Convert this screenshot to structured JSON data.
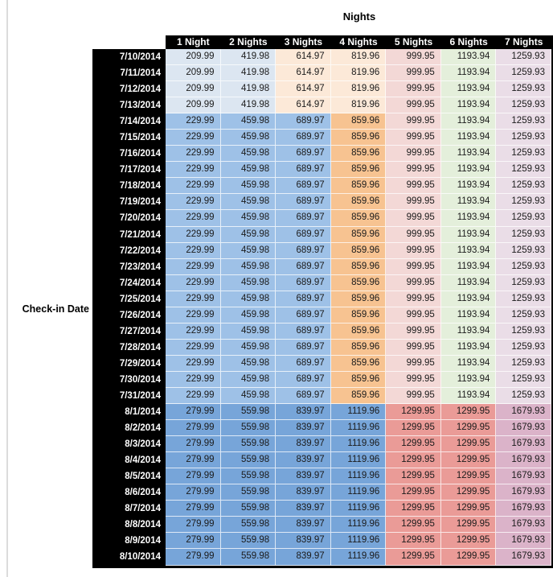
{
  "title": "Nights",
  "row_axis_label": "Check-in Date",
  "columns": [
    "1 Night",
    "2 Nights",
    "3 Nights",
    "4 Nights",
    "5 Nights",
    "6 Nights",
    "7 Nights"
  ],
  "colors": {
    "light_blue": "#DCE6F1",
    "light_tan": "#FCE9D8",
    "mid_blue": "#9EC1E7",
    "mid_orange": "#F7C391",
    "strong_blue": "#77A5D9",
    "light_pink": "#F3D8D6",
    "light_green": "#E4EFDB",
    "light_lavender": "#EADDE7",
    "salmon": "#EA9B97",
    "mauve": "#DBB3C9",
    "header_bg": "#000000",
    "header_text": "#FFFFFF",
    "cell_text": "#1B1B1B",
    "divider_gray": "#DCDCDC"
  },
  "styles": {
    "early": [
      "light_blue",
      "light_blue",
      "light_tan",
      "light_tan",
      "light_pink",
      "light_green",
      "light_lavender"
    ],
    "mid": [
      "mid_blue",
      "mid_blue",
      "mid_blue",
      "mid_orange",
      "light_pink",
      "light_green",
      "light_lavender"
    ],
    "late": [
      "strong_blue",
      "strong_blue",
      "strong_blue",
      "strong_blue",
      "salmon",
      "salmon",
      "mauve"
    ]
  },
  "rows": [
    {
      "date": "7/10/2014",
      "style": "early",
      "values": [
        "209.99",
        "419.98",
        "614.97",
        "819.96",
        "999.95",
        "1193.94",
        "1259.93"
      ]
    },
    {
      "date": "7/11/2014",
      "style": "early",
      "values": [
        "209.99",
        "419.98",
        "614.97",
        "819.96",
        "999.95",
        "1193.94",
        "1259.93"
      ]
    },
    {
      "date": "7/12/2014",
      "style": "early",
      "values": [
        "209.99",
        "419.98",
        "614.97",
        "819.96",
        "999.95",
        "1193.94",
        "1259.93"
      ]
    },
    {
      "date": "7/13/2014",
      "style": "early",
      "values": [
        "209.99",
        "419.98",
        "614.97",
        "819.96",
        "999.95",
        "1193.94",
        "1259.93"
      ]
    },
    {
      "date": "7/14/2014",
      "style": "mid",
      "values": [
        "229.99",
        "459.98",
        "689.97",
        "859.96",
        "999.95",
        "1193.94",
        "1259.93"
      ]
    },
    {
      "date": "7/15/2014",
      "style": "mid",
      "values": [
        "229.99",
        "459.98",
        "689.97",
        "859.96",
        "999.95",
        "1193.94",
        "1259.93"
      ]
    },
    {
      "date": "7/16/2014",
      "style": "mid",
      "values": [
        "229.99",
        "459.98",
        "689.97",
        "859.96",
        "999.95",
        "1193.94",
        "1259.93"
      ]
    },
    {
      "date": "7/17/2014",
      "style": "mid",
      "values": [
        "229.99",
        "459.98",
        "689.97",
        "859.96",
        "999.95",
        "1193.94",
        "1259.93"
      ]
    },
    {
      "date": "7/18/2014",
      "style": "mid",
      "values": [
        "229.99",
        "459.98",
        "689.97",
        "859.96",
        "999.95",
        "1193.94",
        "1259.93"
      ]
    },
    {
      "date": "7/19/2014",
      "style": "mid",
      "values": [
        "229.99",
        "459.98",
        "689.97",
        "859.96",
        "999.95",
        "1193.94",
        "1259.93"
      ]
    },
    {
      "date": "7/20/2014",
      "style": "mid",
      "values": [
        "229.99",
        "459.98",
        "689.97",
        "859.96",
        "999.95",
        "1193.94",
        "1259.93"
      ]
    },
    {
      "date": "7/21/2014",
      "style": "mid",
      "values": [
        "229.99",
        "459.98",
        "689.97",
        "859.96",
        "999.95",
        "1193.94",
        "1259.93"
      ]
    },
    {
      "date": "7/22/2014",
      "style": "mid",
      "values": [
        "229.99",
        "459.98",
        "689.97",
        "859.96",
        "999.95",
        "1193.94",
        "1259.93"
      ]
    },
    {
      "date": "7/23/2014",
      "style": "mid",
      "values": [
        "229.99",
        "459.98",
        "689.97",
        "859.96",
        "999.95",
        "1193.94",
        "1259.93"
      ]
    },
    {
      "date": "7/24/2014",
      "style": "mid",
      "values": [
        "229.99",
        "459.98",
        "689.97",
        "859.96",
        "999.95",
        "1193.94",
        "1259.93"
      ]
    },
    {
      "date": "7/25/2014",
      "style": "mid",
      "values": [
        "229.99",
        "459.98",
        "689.97",
        "859.96",
        "999.95",
        "1193.94",
        "1259.93"
      ]
    },
    {
      "date": "7/26/2014",
      "style": "mid",
      "values": [
        "229.99",
        "459.98",
        "689.97",
        "859.96",
        "999.95",
        "1193.94",
        "1259.93"
      ]
    },
    {
      "date": "7/27/2014",
      "style": "mid",
      "values": [
        "229.99",
        "459.98",
        "689.97",
        "859.96",
        "999.95",
        "1193.94",
        "1259.93"
      ]
    },
    {
      "date": "7/28/2014",
      "style": "mid",
      "values": [
        "229.99",
        "459.98",
        "689.97",
        "859.96",
        "999.95",
        "1193.94",
        "1259.93"
      ]
    },
    {
      "date": "7/29/2014",
      "style": "mid",
      "values": [
        "229.99",
        "459.98",
        "689.97",
        "859.96",
        "999.95",
        "1193.94",
        "1259.93"
      ]
    },
    {
      "date": "7/30/2014",
      "style": "mid",
      "values": [
        "229.99",
        "459.98",
        "689.97",
        "859.96",
        "999.95",
        "1193.94",
        "1259.93"
      ]
    },
    {
      "date": "7/31/2014",
      "style": "mid",
      "values": [
        "229.99",
        "459.98",
        "689.97",
        "859.96",
        "999.95",
        "1193.94",
        "1259.93"
      ]
    },
    {
      "date": "8/1/2014",
      "style": "late",
      "values": [
        "279.99",
        "559.98",
        "839.97",
        "1119.96",
        "1299.95",
        "1299.95",
        "1679.93"
      ]
    },
    {
      "date": "8/2/2014",
      "style": "late",
      "values": [
        "279.99",
        "559.98",
        "839.97",
        "1119.96",
        "1299.95",
        "1299.95",
        "1679.93"
      ]
    },
    {
      "date": "8/3/2014",
      "style": "late",
      "values": [
        "279.99",
        "559.98",
        "839.97",
        "1119.96",
        "1299.95",
        "1299.95",
        "1679.93"
      ]
    },
    {
      "date": "8/4/2014",
      "style": "late",
      "values": [
        "279.99",
        "559.98",
        "839.97",
        "1119.96",
        "1299.95",
        "1299.95",
        "1679.93"
      ]
    },
    {
      "date": "8/5/2014",
      "style": "late",
      "values": [
        "279.99",
        "559.98",
        "839.97",
        "1119.96",
        "1299.95",
        "1299.95",
        "1679.93"
      ]
    },
    {
      "date": "8/6/2014",
      "style": "late",
      "values": [
        "279.99",
        "559.98",
        "839.97",
        "1119.96",
        "1299.95",
        "1299.95",
        "1679.93"
      ]
    },
    {
      "date": "8/7/2014",
      "style": "late",
      "values": [
        "279.99",
        "559.98",
        "839.97",
        "1119.96",
        "1299.95",
        "1299.95",
        "1679.93"
      ]
    },
    {
      "date": "8/8/2014",
      "style": "late",
      "values": [
        "279.99",
        "559.98",
        "839.97",
        "1119.96",
        "1299.95",
        "1299.95",
        "1679.93"
      ]
    },
    {
      "date": "8/9/2014",
      "style": "late",
      "values": [
        "279.99",
        "559.98",
        "839.97",
        "1119.96",
        "1299.95",
        "1299.95",
        "1679.93"
      ]
    },
    {
      "date": "8/10/2014",
      "style": "late",
      "values": [
        "279.99",
        "559.98",
        "839.97",
        "1119.96",
        "1299.95",
        "1299.95",
        "1679.93"
      ]
    }
  ]
}
